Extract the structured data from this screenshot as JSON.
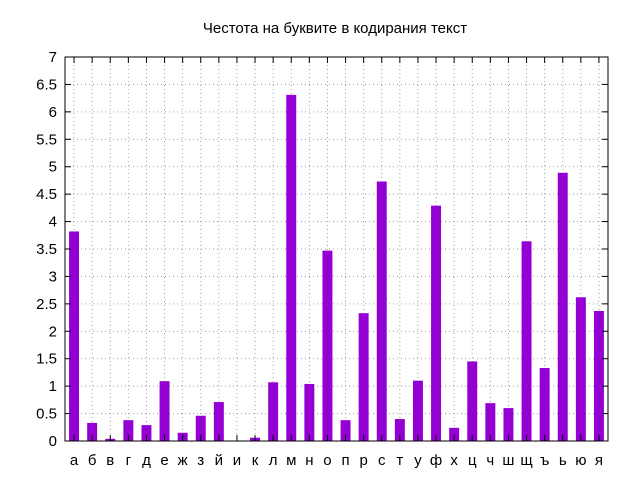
{
  "chart_data": {
    "type": "bar",
    "title": "Честота на буквите в кодирания текст",
    "xlabel": "",
    "ylabel": "",
    "categories": [
      "а",
      "б",
      "в",
      "г",
      "д",
      "е",
      "ж",
      "з",
      "й",
      "и",
      "к",
      "л",
      "м",
      "н",
      "о",
      "п",
      "р",
      "с",
      "т",
      "у",
      "ф",
      "х",
      "ц",
      "ч",
      "ш",
      "щ",
      "ъ",
      "ь",
      "ю",
      "я"
    ],
    "values": [
      3.82,
      0.33,
      0.04,
      0.38,
      0.29,
      1.09,
      0.15,
      0.46,
      0.71,
      0.0,
      0.06,
      1.07,
      6.31,
      1.04,
      3.47,
      0.38,
      2.33,
      4.73,
      0.4,
      1.1,
      4.29,
      0.24,
      1.45,
      0.69,
      0.6,
      3.64,
      1.33,
      4.89,
      2.62,
      2.37
    ],
    "ylim": [
      0,
      7
    ],
    "yticks": [
      "0",
      "0.5",
      "1",
      "1.5",
      "2",
      "2.5",
      "3",
      "3.5",
      "4",
      "4.5",
      "5",
      "5.5",
      "6",
      "6.5",
      "7"
    ],
    "grid": true,
    "bar_color": "#9400d3"
  }
}
